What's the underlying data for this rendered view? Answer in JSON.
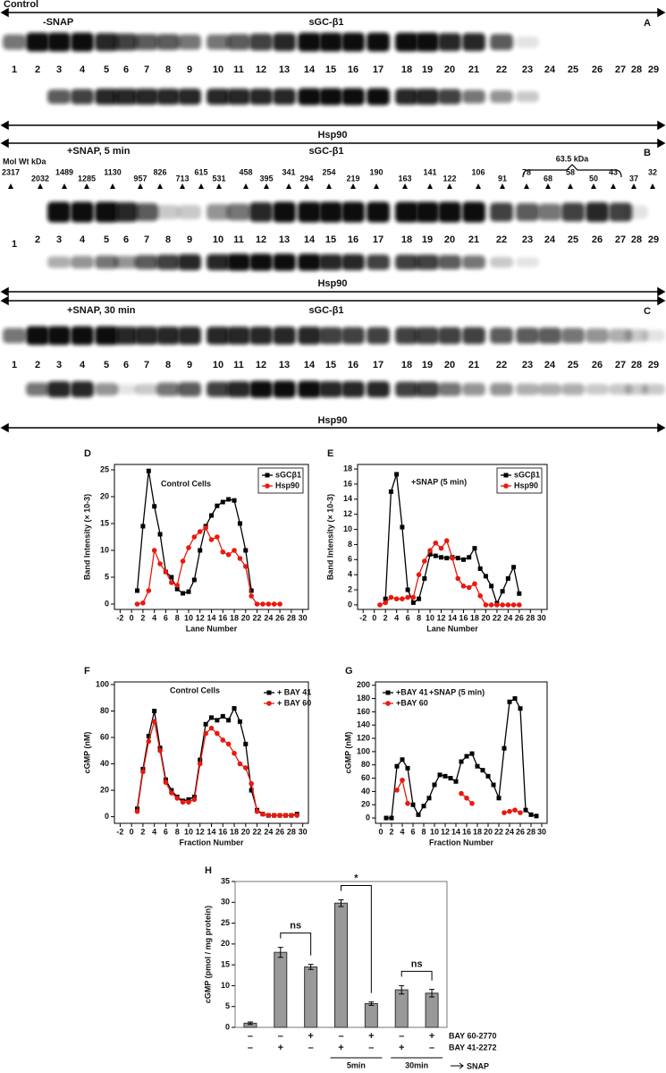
{
  "panel_A": {
    "header": "Control",
    "condition": "-SNAP",
    "protein": "sGC-β1",
    "label": "A",
    "bottom_label": "Hsp90"
  },
  "panel_B": {
    "condition": "+SNAP, 5 min",
    "protein": "sGC-β1",
    "label": "B",
    "mol_wt_title": "Mol Wt kDa",
    "mol_wt": [
      2317,
      2032,
      1489,
      1285,
      1130,
      957,
      826,
      713,
      615,
      531,
      458,
      395,
      341,
      294,
      254,
      219,
      190,
      163,
      141,
      122,
      106,
      91,
      78,
      68,
      58,
      50,
      43,
      37,
      32
    ],
    "brace_label": "63.5 kDa",
    "bottom_label": "Hsp90"
  },
  "panel_C": {
    "condition": "+SNAP, 30 min",
    "protein": "sGC-β1",
    "label": "C",
    "bottom_label": "Hsp90"
  },
  "lane_numbers": [
    1,
    2,
    3,
    4,
    5,
    6,
    7,
    8,
    9,
    10,
    11,
    12,
    13,
    14,
    15,
    16,
    17,
    18,
    19,
    20,
    21,
    22,
    23,
    24,
    25,
    26,
    27,
    28,
    29
  ],
  "chart_data": [
    {
      "type": "line",
      "label": "D",
      "title": "Control Cells",
      "x_label": "Lane Number",
      "y_label": "Band Intensity (× 10-3)",
      "legend": "upper right",
      "legend_box": true,
      "x": [
        1,
        2,
        3,
        4,
        5,
        6,
        7,
        8,
        9,
        10,
        11,
        12,
        13,
        14,
        15,
        16,
        17,
        18,
        19,
        20,
        21,
        22,
        23,
        24,
        25,
        26
      ],
      "series": [
        {
          "name": "sGCβ1",
          "color": "#000000",
          "marker": "square",
          "values": [
            2.5,
            14.5,
            24.8,
            18.2,
            13,
            6,
            5,
            2.8,
            2,
            2.3,
            4.5,
            10,
            14.5,
            16.5,
            18.3,
            19,
            19.5,
            19.3,
            15,
            10,
            2.5,
            null,
            null,
            null,
            null,
            null
          ]
        },
        {
          "name": "Hsp90",
          "color": "#e8190f",
          "marker": "circle",
          "values": [
            0,
            0.2,
            2.5,
            10,
            7.5,
            6,
            4,
            3.5,
            8,
            10.5,
            12.5,
            13.5,
            14.2,
            12,
            12.5,
            9.7,
            9.2,
            10,
            8.5,
            7,
            1.5,
            0,
            0,
            0,
            0,
            0
          ]
        }
      ],
      "xlim": [
        -3,
        31
      ],
      "ylim": [
        -1,
        26
      ],
      "xticks": [
        -2,
        0,
        2,
        4,
        6,
        8,
        10,
        12,
        14,
        16,
        18,
        20,
        22,
        24,
        26,
        28,
        30
      ],
      "yticks": [
        0,
        5,
        10,
        15,
        20,
        25
      ]
    },
    {
      "type": "line",
      "label": "E",
      "title": "+SNAP (5 min)",
      "x_label": "Lane Number",
      "y_label": "Band Intensity (× 10-3)",
      "legend": "upper right",
      "legend_box": true,
      "x": [
        1,
        2,
        3,
        4,
        5,
        6,
        7,
        8,
        9,
        10,
        11,
        12,
        13,
        14,
        15,
        16,
        17,
        18,
        19,
        20,
        21,
        22,
        23,
        24,
        25,
        26
      ],
      "series": [
        {
          "name": "sGCβ1",
          "color": "#000000",
          "marker": "square",
          "values": [
            null,
            0.8,
            15,
            17.3,
            10.3,
            2,
            0.3,
            0.8,
            3.5,
            6.7,
            6.5,
            6.3,
            6.2,
            6.3,
            6.2,
            6,
            6.3,
            7.5,
            4.8,
            3.8,
            2.5,
            0.2,
            1.8,
            3.5,
            5,
            1.5
          ]
        },
        {
          "name": "Hsp90",
          "color": "#e8190f",
          "marker": "circle",
          "values": [
            0,
            0.3,
            1,
            0.8,
            0.8,
            1,
            1,
            4,
            5.8,
            7.2,
            8.2,
            7.5,
            8.5,
            6.2,
            3.5,
            2.5,
            2.3,
            2.8,
            1.2,
            0,
            0,
            0,
            0,
            0,
            0,
            0
          ]
        }
      ],
      "xlim": [
        -3,
        31
      ],
      "ylim": [
        -0.6,
        18.6
      ],
      "xticks": [
        -2,
        0,
        2,
        4,
        6,
        8,
        10,
        12,
        14,
        16,
        18,
        20,
        22,
        24,
        26,
        28,
        30
      ],
      "yticks": [
        0,
        2,
        4,
        6,
        8,
        10,
        12,
        14,
        16,
        18
      ]
    },
    {
      "type": "line",
      "label": "F",
      "title": "Control Cells",
      "x_label": "Fraction Number",
      "y_label": "cGMP (nM)",
      "legend": "upper right",
      "legend_box": false,
      "x": [
        1,
        2,
        3,
        4,
        5,
        6,
        7,
        8,
        9,
        10,
        11,
        12,
        13,
        14,
        15,
        16,
        17,
        18,
        19,
        20,
        21,
        22,
        23,
        24,
        25,
        26,
        27,
        28,
        29
      ],
      "series": [
        {
          "name": "+ BAY 41",
          "color": "#000000",
          "marker": "square",
          "values": [
            6,
            36,
            61,
            80,
            52,
            28,
            20,
            15,
            12,
            13,
            15,
            43,
            70,
            75,
            73,
            76,
            73,
            82,
            72,
            55,
            20,
            5,
            2,
            1,
            1,
            1,
            1,
            1,
            2
          ]
        },
        {
          "name": "+ BAY 60",
          "color": "#e8190f",
          "marker": "circle",
          "values": [
            4,
            34,
            57,
            72,
            50,
            26,
            18,
            14,
            11,
            11,
            13,
            40,
            63,
            67,
            63,
            58,
            55,
            48,
            40,
            37,
            25,
            4,
            2,
            1,
            1,
            1,
            1,
            1,
            1
          ]
        }
      ],
      "xlim": [
        -3,
        31
      ],
      "ylim": [
        -5,
        102
      ],
      "xticks": [
        -2,
        0,
        2,
        4,
        6,
        8,
        10,
        12,
        14,
        16,
        18,
        20,
        22,
        24,
        26,
        28,
        30
      ],
      "yticks": [
        0,
        20,
        40,
        60,
        80,
        100
      ]
    },
    {
      "type": "line",
      "label": "G",
      "title": "+SNAP (5 min)",
      "x_label": "Fraction Number",
      "y_label": "cGMP (nM)",
      "legend": "upper left",
      "legend_box": false,
      "x": [
        1,
        2,
        3,
        4,
        5,
        6,
        7,
        8,
        9,
        10,
        11,
        12,
        13,
        14,
        15,
        16,
        17,
        18,
        19,
        20,
        21,
        22,
        23,
        24,
        25,
        26,
        27,
        28,
        29
      ],
      "series": [
        {
          "name": "+BAY 41",
          "color": "#000000",
          "marker": "square",
          "values": [
            0,
            0,
            78,
            88,
            75,
            20,
            5,
            18,
            30,
            50,
            65,
            63,
            60,
            55,
            85,
            93,
            97,
            78,
            72,
            63,
            50,
            30,
            105,
            175,
            180,
            165,
            12,
            5,
            3
          ]
        },
        {
          "name": "+BAY 60",
          "color": "#e8190f",
          "marker": "circle",
          "values": [
            null,
            null,
            42,
            57,
            22,
            null,
            null,
            null,
            null,
            null,
            null,
            null,
            null,
            null,
            37,
            30,
            22,
            null,
            null,
            null,
            null,
            null,
            8,
            10,
            12,
            8,
            null,
            null,
            null
          ]
        }
      ],
      "xlim": [
        -1,
        31
      ],
      "ylim": [
        -8,
        205
      ],
      "xticks": [
        0,
        2,
        4,
        6,
        8,
        10,
        12,
        14,
        16,
        18,
        20,
        22,
        24,
        26,
        28,
        30
      ],
      "yticks": [
        0,
        20,
        40,
        60,
        80,
        100,
        120,
        140,
        160,
        180,
        200
      ]
    },
    {
      "type": "bar",
      "label": "H",
      "y_label": "cGMP (pmol / mg protein)",
      "color": "#999999",
      "categories": [
        null,
        null,
        null,
        null,
        null,
        null,
        null
      ],
      "values": [
        1,
        18,
        14.5,
        29.8,
        5.7,
        9,
        8.2
      ],
      "errors": [
        0.3,
        1.2,
        0.6,
        0.8,
        0.4,
        1,
        0.9
      ],
      "rows": [
        {
          "label": "BAY 60-2770",
          "marks": [
            "–",
            "–",
            "+",
            "–",
            "+",
            "–",
            "+"
          ]
        },
        {
          "label": "BAY 41-2272",
          "marks": [
            "–",
            "+",
            "–",
            "+",
            "–",
            "+",
            "–"
          ]
        }
      ],
      "comparisons": [
        "ns",
        "*",
        "ns"
      ],
      "group_labels": [
        "5min",
        "30min"
      ],
      "group_arrow_label": "SNAP",
      "ylim": [
        0,
        35
      ],
      "yticks": [
        0,
        5,
        10,
        15,
        20,
        25,
        30,
        35
      ]
    }
  ]
}
